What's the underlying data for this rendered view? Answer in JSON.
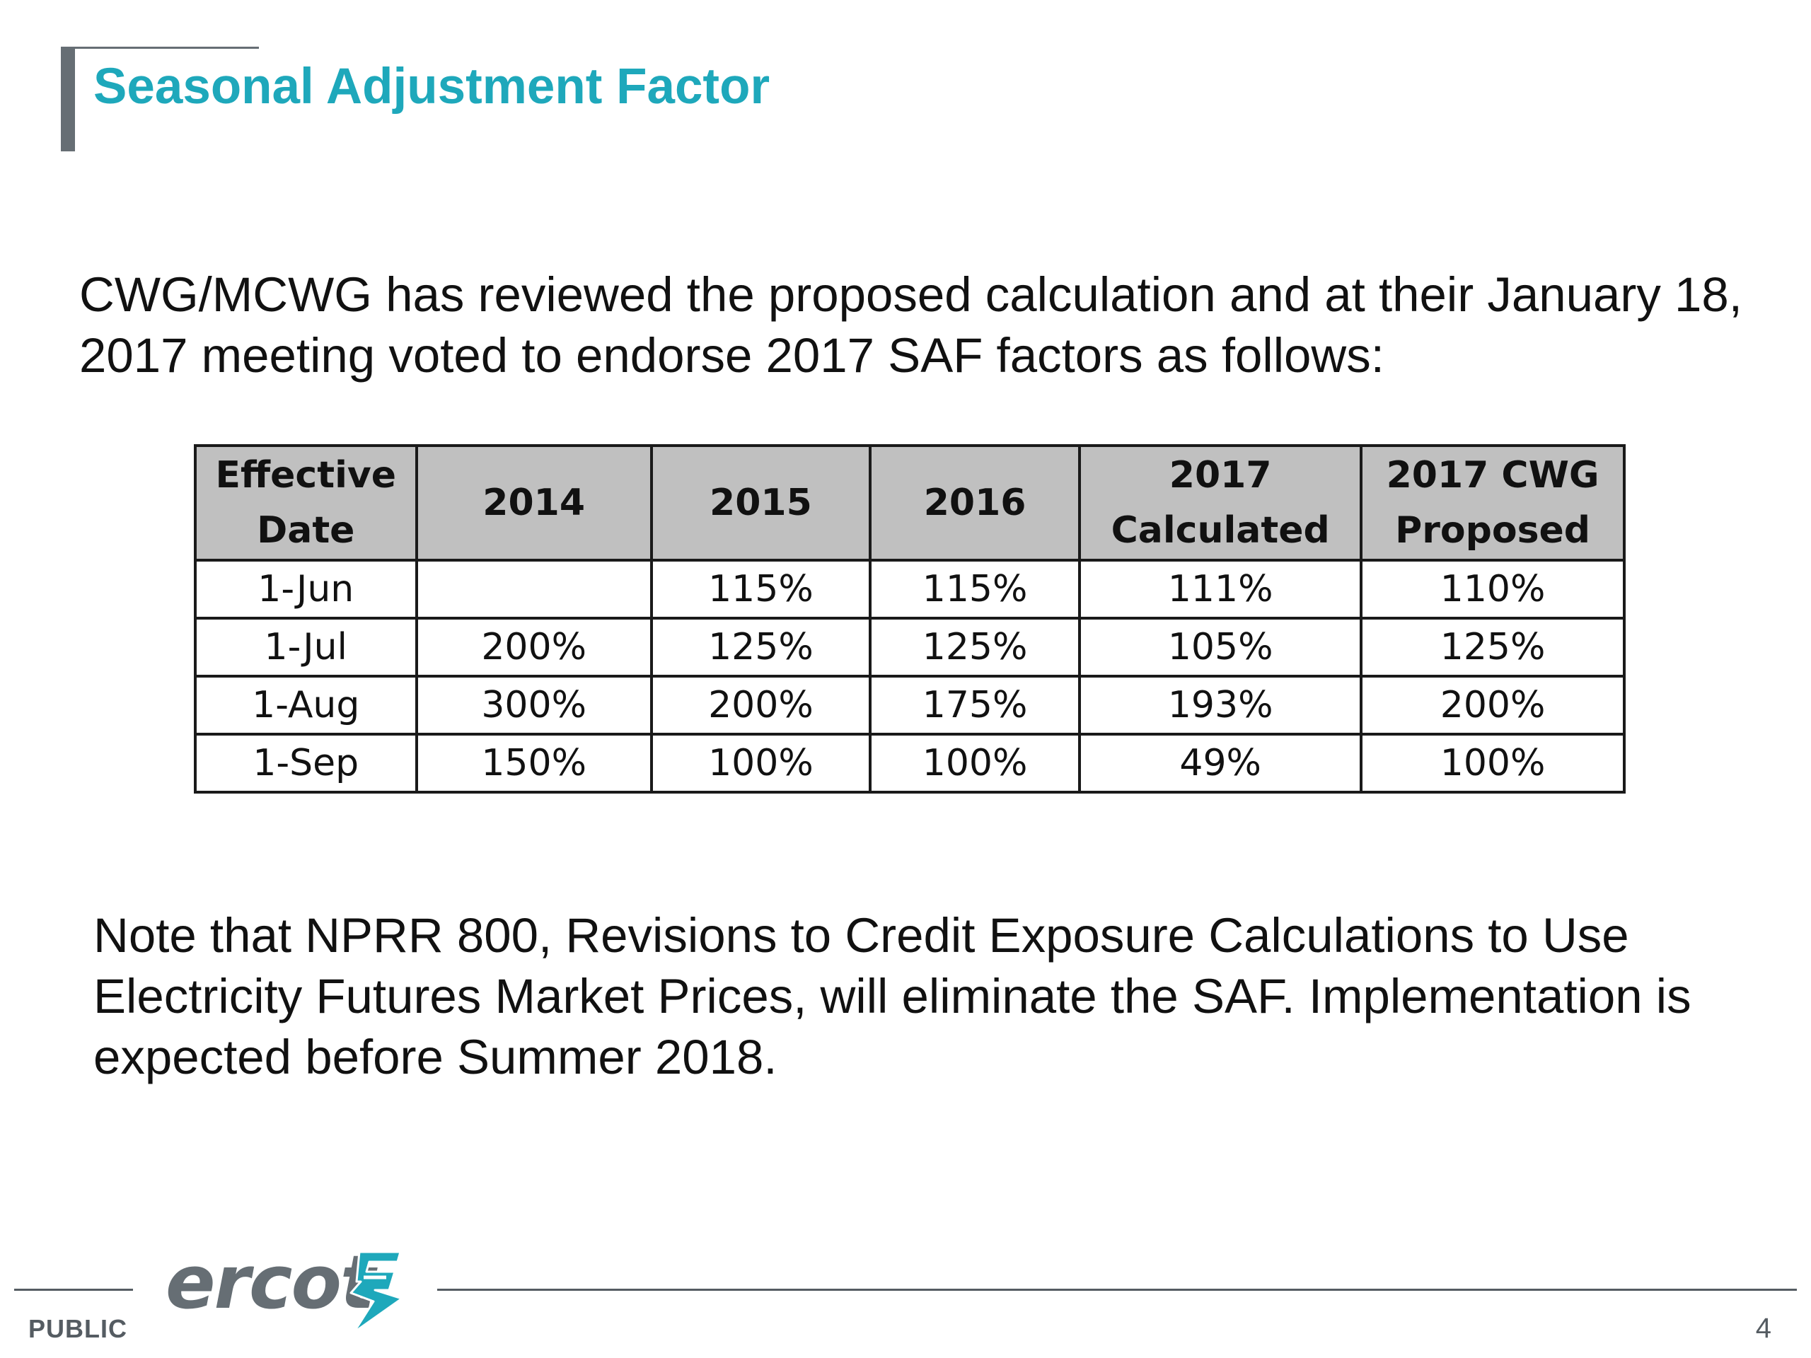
{
  "slide": {
    "title": "Seasonal Adjustment Factor",
    "intro": "CWG/MCWG has reviewed the proposed calculation and at their January 18, 2017 meeting voted to endorse 2017 SAF factors as follows:",
    "note": "Note that NPRR 800, Revisions to Credit Exposure Calculations to Use Electricity Futures Market Prices, will eliminate the SAF.  Implementation is expected before Summer 2018."
  },
  "table": {
    "headers": [
      {
        "line1": "Effective",
        "line2": "Date"
      },
      {
        "line1": "2014",
        "line2": ""
      },
      {
        "line1": "2015",
        "line2": ""
      },
      {
        "line1": "2016",
        "line2": ""
      },
      {
        "line1": "2017",
        "line2": "Calculated"
      },
      {
        "line1": "2017 CWG",
        "line2": "Proposed"
      }
    ],
    "rows": [
      [
        "1-Jun",
        "",
        "115%",
        "115%",
        "111%",
        "110%"
      ],
      [
        "1-Jul",
        "200%",
        "125%",
        "125%",
        "105%",
        "125%"
      ],
      [
        "1-Aug",
        "300%",
        "200%",
        "175%",
        "193%",
        "200%"
      ],
      [
        "1-Sep",
        "150%",
        "100%",
        "100%",
        "49%",
        "100%"
      ]
    ]
  },
  "footer": {
    "logo_text": "ercot",
    "logo_icon": "ercot-lightning-logo-icon",
    "classification": "PUBLIC",
    "page_number": "4"
  },
  "colors": {
    "title": "#1ea8bb",
    "accent_gray": "#666e74",
    "header_fill": "#c0c0c0",
    "logo_mark": "#1ea8bb"
  }
}
